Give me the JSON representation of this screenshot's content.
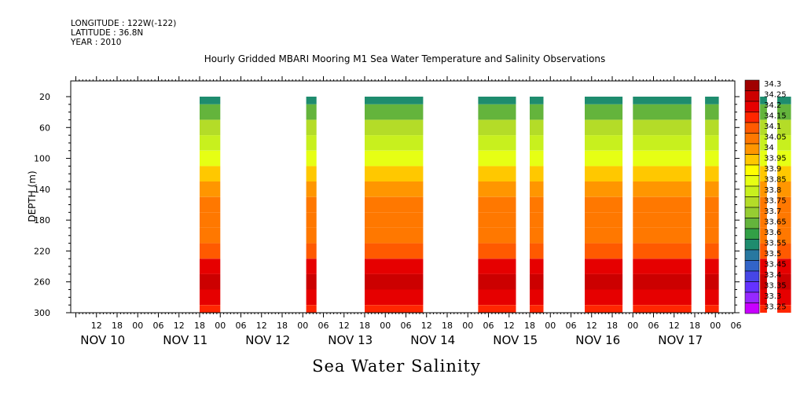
{
  "header": {
    "longitude": "LONGITUDE : 122W(-122)",
    "latitude": "LATITUDE : 36.8N",
    "year": "YEAR : 2010"
  },
  "chart_data": {
    "type": "heatmap",
    "title": "Hourly Gridded MBARI Mooring M1 Sea Water Temperature and Salinity Observations",
    "ylabel": "DEPTH (m)",
    "footer": "Sea Water Salinity",
    "x_start": "NOV 10 06",
    "x_unit": "hours",
    "y_ticks": [
      20,
      60,
      100,
      140,
      180,
      220,
      260,
      300
    ],
    "ylim": [
      300,
      0
    ],
    "x_hour_ticks": [
      "12",
      "18",
      "00",
      "06",
      "12",
      "18",
      "00",
      "06",
      "12",
      "18",
      "00",
      "06",
      "12",
      "18",
      "00",
      "06",
      "12",
      "18",
      "00",
      "06",
      "12",
      "18",
      "00",
      "06",
      "12",
      "18",
      "00",
      "06",
      "12",
      "18",
      "00",
      "06"
    ],
    "day_labels": [
      "NOV 10",
      "NOV 11",
      "NOV 12",
      "NOV 13",
      "NOV 14",
      "NOV 15",
      "NOV 16",
      "NOV 17"
    ],
    "legend_levels": [
      "34.3",
      "34.25",
      "34.2",
      "34.15",
      "34.1",
      "34.05",
      "34",
      "33.95",
      "33.9",
      "33.85",
      "33.8",
      "33.75",
      "33.7",
      "33.65",
      "33.6",
      "33.55",
      "33.5",
      "33.45",
      "33.4",
      "33.35",
      "33.3",
      "33.25"
    ],
    "legend_colors": [
      "#a00000",
      "#cc0000",
      "#e60000",
      "#ff2600",
      "#ff5a00",
      "#ff7800",
      "#ff9600",
      "#ffc800",
      "#ffff00",
      "#e6ff14",
      "#c8f01e",
      "#b4dc28",
      "#96cd32",
      "#64b43c",
      "#32a046",
      "#1e8c6e",
      "#2878a0",
      "#3264c8",
      "#4646e6",
      "#6432ff",
      "#9628ff",
      "#c800ff"
    ],
    "data_segments_hours": [
      [
        36,
        42
      ],
      [
        67,
        70
      ],
      [
        84,
        101
      ],
      [
        117,
        128
      ],
      [
        132,
        136
      ],
      [
        148,
        159
      ],
      [
        162,
        179
      ],
      [
        183,
        187
      ],
      [
        199,
        201
      ],
      [
        204,
        208
      ]
    ],
    "profile_depths_m": [
      20,
      40,
      60,
      80,
      100,
      120,
      140,
      160,
      180,
      200,
      220,
      240,
      260,
      280,
      300
    ],
    "typical_profile_salinity": [
      33.55,
      33.65,
      33.75,
      33.8,
      33.85,
      33.95,
      34.0,
      34.05,
      34.05,
      34.05,
      34.1,
      34.2,
      34.25,
      34.2,
      34.15
    ]
  }
}
